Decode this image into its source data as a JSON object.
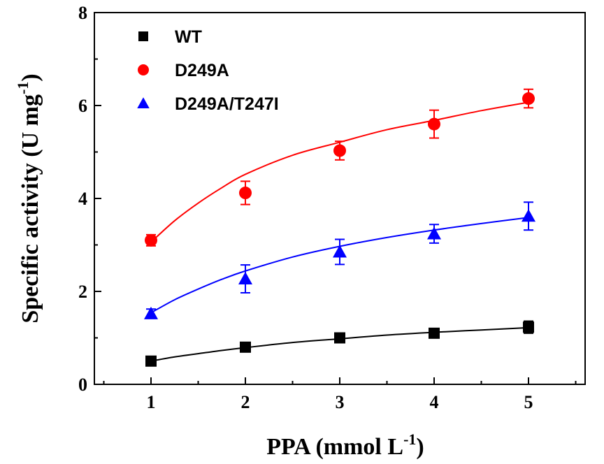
{
  "chart_data": {
    "type": "scatter",
    "xlabel_main": "PPA (mmol L",
    "xlabel_sup": "-1",
    "xlabel_close": ")",
    "ylabel_main": "Specific activity (U mg",
    "ylabel_sup": "-1",
    "ylabel_close": ")",
    "xlim": [
      0.4,
      5.6
    ],
    "ylim": [
      0,
      8
    ],
    "xticks": [
      1,
      2,
      3,
      4,
      5
    ],
    "yticks": [
      0,
      2,
      4,
      6,
      8
    ],
    "xtick_labels": [
      "1",
      "2",
      "3",
      "4",
      "5"
    ],
    "ytick_labels": [
      "0",
      "2",
      "4",
      "6",
      "8"
    ],
    "legend_position": "top-left",
    "grid": false,
    "series": [
      {
        "name": "WT",
        "color": "#000000",
        "marker": "square",
        "x": [
          1,
          2,
          3,
          4,
          5
        ],
        "y": [
          0.5,
          0.8,
          1.0,
          1.1,
          1.23
        ],
        "err": [
          0.05,
          0.08,
          0.1,
          0.07,
          0.13
        ],
        "fit_x": [
          1,
          1.25,
          1.5,
          1.75,
          2,
          2.5,
          3,
          3.5,
          4,
          4.5,
          5
        ],
        "fit_y": [
          0.5,
          0.59,
          0.66,
          0.73,
          0.79,
          0.9,
          0.98,
          1.06,
          1.12,
          1.17,
          1.22
        ]
      },
      {
        "name": "D249A",
        "color": "#ff0000",
        "marker": "circle",
        "x": [
          1,
          2,
          3,
          4,
          5
        ],
        "y": [
          3.1,
          4.12,
          5.03,
          5.6,
          6.15
        ],
        "err": [
          0.12,
          0.25,
          0.2,
          0.3,
          0.2
        ],
        "fit_x": [
          1,
          1.25,
          1.5,
          1.75,
          2,
          2.5,
          3,
          3.5,
          4,
          4.5,
          5
        ],
        "fit_y": [
          3.06,
          3.52,
          3.9,
          4.23,
          4.52,
          4.93,
          5.21,
          5.48,
          5.68,
          5.89,
          6.07
        ]
      },
      {
        "name": "D249A/T247I",
        "color": "#0000ff",
        "marker": "triangle",
        "x": [
          1,
          2,
          3,
          4,
          5
        ],
        "y": [
          1.52,
          2.27,
          2.85,
          3.24,
          3.62
        ],
        "err": [
          0.1,
          0.3,
          0.27,
          0.2,
          0.3
        ],
        "fit_x": [
          1,
          1.25,
          1.5,
          1.75,
          2,
          2.5,
          3,
          3.5,
          4,
          4.5,
          5
        ],
        "fit_y": [
          1.54,
          1.82,
          2.05,
          2.26,
          2.44,
          2.74,
          2.97,
          3.16,
          3.32,
          3.46,
          3.59
        ]
      }
    ]
  }
}
